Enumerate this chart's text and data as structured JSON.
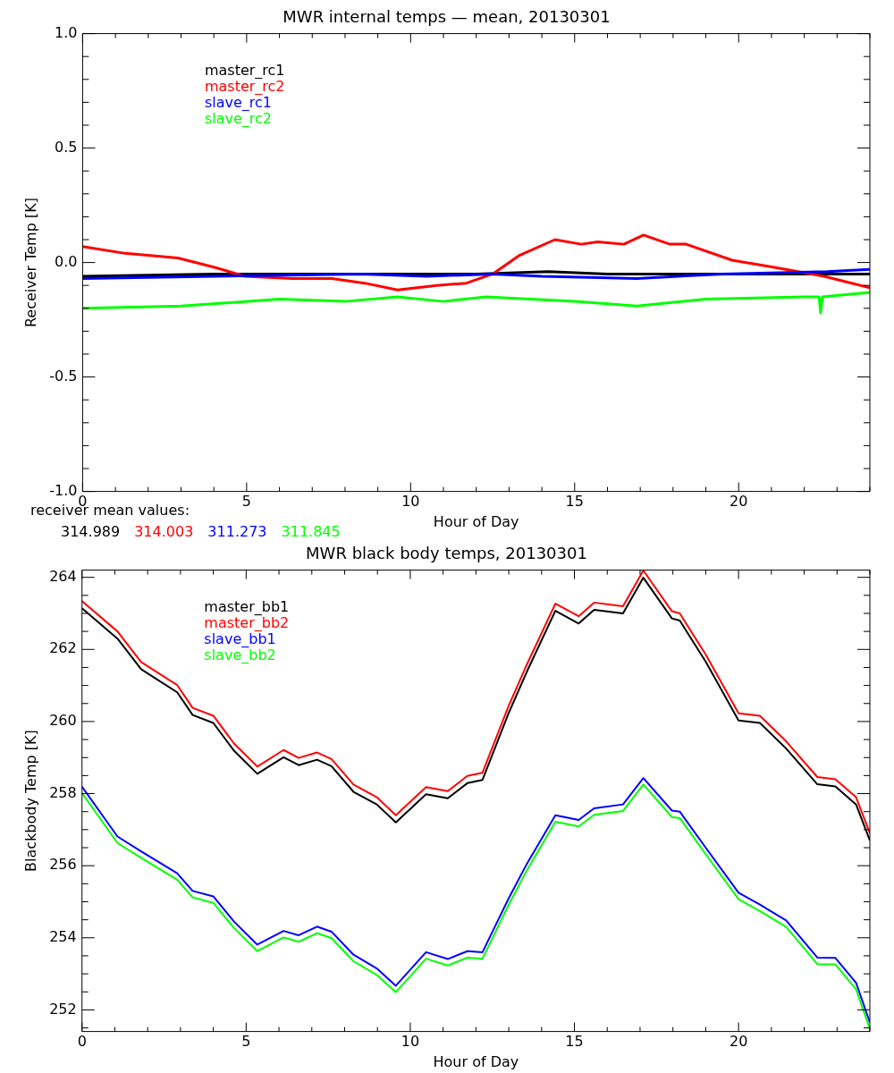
{
  "chart_data": [
    {
      "type": "line",
      "title": "MWR internal temps — mean, 20130301",
      "xlabel": "Hour of Day",
      "ylabel": "Receiver Temp [K]",
      "legend": "top left",
      "xlim": [
        0,
        24
      ],
      "xticks": [
        0,
        {
          "value": 1,
          "label": null
        },
        {
          "value": 2,
          "label": null
        },
        {
          "value": 3,
          "label": null
        },
        {
          "value": 4,
          "label": null
        },
        5,
        {
          "value": 6,
          "label": null
        },
        {
          "value": 7,
          "label": null
        },
        {
          "value": 8,
          "label": null
        },
        {
          "value": 9,
          "label": null
        },
        10,
        {
          "value": 11,
          "label": null
        },
        {
          "value": 12,
          "label": null
        },
        {
          "value": 13,
          "label": null
        },
        {
          "value": 14,
          "label": null
        },
        15,
        {
          "value": 16,
          "label": null
        },
        {
          "value": 17,
          "label": null
        },
        {
          "value": 18,
          "label": null
        },
        {
          "value": 19,
          "label": null
        },
        20,
        {
          "value": 21,
          "label": null
        },
        {
          "value": 22,
          "label": null
        },
        {
          "value": 23,
          "label": null
        },
        {
          "value": 24,
          "label": null
        }
      ],
      "ylim": [
        -1,
        1
      ],
      "yticks": [
        {
          "value": -1,
          "label": "-1.0"
        },
        {
          "value": -0.9,
          "label": null
        },
        {
          "value": -0.8,
          "label": null
        },
        {
          "value": -0.7,
          "label": null
        },
        {
          "value": -0.6,
          "label": null
        },
        {
          "value": -0.5,
          "label": "-0.5"
        },
        {
          "value": -0.4,
          "label": null
        },
        {
          "value": -0.3,
          "label": null
        },
        {
          "value": -0.2,
          "label": null
        },
        {
          "value": -0.1,
          "label": null
        },
        {
          "value": 0,
          "label": "0.0"
        },
        {
          "value": 0.1,
          "label": null
        },
        {
          "value": 0.2,
          "label": null
        },
        {
          "value": 0.3,
          "label": null
        },
        {
          "value": 0.4,
          "label": null
        },
        {
          "value": 0.5,
          "label": "0.5"
        },
        {
          "value": 0.6,
          "label": null
        },
        {
          "value": 0.7,
          "label": null
        },
        {
          "value": 0.8,
          "label": null
        },
        {
          "value": 0.9,
          "label": null
        },
        {
          "value": 1,
          "label": "1.0"
        }
      ],
      "annotations": [
        "receiver mean values:",
        "314.989",
        "314.003",
        "311.273",
        "311.845"
      ],
      "series": [
        {
          "name": "master_rc1",
          "color": "#000000",
          "x": [
            0,
            4,
            8,
            10,
            12,
            14.2,
            16,
            17,
            20,
            24
          ],
          "values": [
            -0.06,
            -0.05,
            -0.05,
            -0.05,
            -0.05,
            -0.04,
            -0.05,
            -0.05,
            -0.05,
            -0.05
          ]
        },
        {
          "name": "master_rc2",
          "color": "#ff0000",
          "x": [
            0,
            1.3,
            2.9,
            4.0,
            4.95,
            6.4,
            7.6,
            8.6,
            9.6,
            10.8,
            11.7,
            12.5,
            13.3,
            14.4,
            15.2,
            15.7,
            16.5,
            17.1,
            17.9,
            18.4,
            19.8,
            21.05,
            22.6,
            24
          ],
          "values": [
            0.07,
            0.04,
            0.02,
            -0.02,
            -0.06,
            -0.07,
            -0.07,
            -0.09,
            -0.12,
            -0.1,
            -0.09,
            -0.05,
            0.03,
            0.1,
            0.08,
            0.09,
            0.08,
            0.12,
            0.08,
            0.08,
            0.01,
            -0.02,
            -0.06,
            -0.11
          ]
        },
        {
          "name": "slave_rc1",
          "color": "#0000ff",
          "x": [
            0,
            4,
            8.5,
            10.5,
            12.5,
            14,
            16.9,
            19.5,
            22.7,
            24
          ],
          "values": [
            -0.07,
            -0.06,
            -0.05,
            -0.06,
            -0.05,
            -0.06,
            -0.07,
            -0.05,
            -0.04,
            -0.03
          ]
        },
        {
          "name": "slave_rc2",
          "color": "#00ff00",
          "x": [
            0,
            3,
            6,
            8,
            9.6,
            11,
            12.3,
            15,
            16.9,
            19,
            22,
            22.45,
            22.5,
            22.55,
            24
          ],
          "values": [
            -0.2,
            -0.19,
            -0.16,
            -0.17,
            -0.15,
            -0.17,
            -0.15,
            -0.17,
            -0.19,
            -0.16,
            -0.15,
            -0.15,
            -0.22,
            -0.15,
            -0.13
          ]
        }
      ]
    },
    {
      "type": "line",
      "title": "MWR black body temps, 20130301",
      "xlabel": "Hour of Day",
      "ylabel": "Blackbody Temp [K]",
      "legend": "top left",
      "xlim": [
        0,
        24
      ],
      "xticks": [
        0,
        {
          "value": 1,
          "label": null
        },
        {
          "value": 2,
          "label": null
        },
        {
          "value": 3,
          "label": null
        },
        {
          "value": 4,
          "label": null
        },
        5,
        {
          "value": 6,
          "label": null
        },
        {
          "value": 7,
          "label": null
        },
        {
          "value": 8,
          "label": null
        },
        {
          "value": 9,
          "label": null
        },
        10,
        {
          "value": 11,
          "label": null
        },
        {
          "value": 12,
          "label": null
        },
        {
          "value": 13,
          "label": null
        },
        {
          "value": 14,
          "label": null
        },
        15,
        {
          "value": 16,
          "label": null
        },
        {
          "value": 17,
          "label": null
        },
        {
          "value": 18,
          "label": null
        },
        {
          "value": 19,
          "label": null
        },
        20,
        {
          "value": 21,
          "label": null
        },
        {
          "value": 22,
          "label": null
        },
        {
          "value": 23,
          "label": null
        },
        {
          "value": 24,
          "label": null
        }
      ],
      "ylim": [
        251.4,
        264.2
      ],
      "yticks": [
        {
          "value": 251.5,
          "label": null
        },
        252,
        {
          "value": 252.5,
          "label": null
        },
        {
          "value": 253,
          "label": null
        },
        {
          "value": 253.5,
          "label": null
        },
        254,
        {
          "value": 254.5,
          "label": null
        },
        {
          "value": 255,
          "label": null
        },
        {
          "value": 255.5,
          "label": null
        },
        256,
        {
          "value": 256.5,
          "label": null
        },
        {
          "value": 257,
          "label": null
        },
        {
          "value": 257.5,
          "label": null
        },
        258,
        {
          "value": 258.5,
          "label": null
        },
        {
          "value": 259,
          "label": null
        },
        {
          "value": 259.5,
          "label": null
        },
        260,
        {
          "value": 260.5,
          "label": null
        },
        {
          "value": 261,
          "label": null
        },
        {
          "value": 261.5,
          "label": null
        },
        262,
        {
          "value": 262.5,
          "label": null
        },
        {
          "value": 263,
          "label": null
        },
        {
          "value": 263.5,
          "label": null
        },
        264
      ],
      "x": [
        0,
        1.08,
        1.8,
        2.9,
        3.37,
        4.0,
        4.63,
        5.34,
        6.14,
        6.6,
        7.16,
        7.6,
        8.27,
        8.98,
        9.56,
        10.48,
        11.14,
        11.74,
        12.2,
        13.0,
        13.55,
        14.42,
        15.13,
        15.6,
        16.48,
        17.1,
        17.97,
        18.21,
        19.0,
        20.0,
        20.65,
        21.45,
        22.4,
        22.95,
        23.58,
        24
      ],
      "series": [
        {
          "name": "master_bb1",
          "color": "#000000",
          "values": [
            263.14,
            262.3,
            261.45,
            260.81,
            260.18,
            259.96,
            259.19,
            258.55,
            259.01,
            258.79,
            258.94,
            258.76,
            258.05,
            257.7,
            257.2,
            257.98,
            257.87,
            258.29,
            258.38,
            260.24,
            261.38,
            263.07,
            262.72,
            263.1,
            263.0,
            263.99,
            262.86,
            262.8,
            261.66,
            260.03,
            259.96,
            259.25,
            258.26,
            258.2,
            257.7,
            256.7
          ]
        },
        {
          "name": "master_bb2",
          "color": "#ff0000",
          "values": [
            263.34,
            262.5,
            261.65,
            261.01,
            260.38,
            260.16,
            259.39,
            258.75,
            259.21,
            258.99,
            259.14,
            258.96,
            258.25,
            257.9,
            257.4,
            258.18,
            258.07,
            258.49,
            258.58,
            260.44,
            261.58,
            263.27,
            262.92,
            263.3,
            263.2,
            264.19,
            263.06,
            263.0,
            261.86,
            260.23,
            260.16,
            259.45,
            258.46,
            258.4,
            257.9,
            256.9
          ]
        },
        {
          "name": "slave_bb1",
          "color": "#0000ff",
          "values": [
            258.19,
            256.81,
            256.4,
            255.79,
            255.3,
            255.15,
            254.45,
            253.81,
            254.19,
            254.07,
            254.31,
            254.17,
            253.53,
            253.15,
            252.67,
            253.6,
            253.41,
            253.63,
            253.6,
            255.1,
            256.05,
            257.4,
            257.27,
            257.59,
            257.7,
            258.43,
            257.53,
            257.5,
            256.5,
            255.25,
            254.92,
            254.48,
            253.45,
            253.44,
            252.75,
            251.65
          ]
        },
        {
          "name": "slave_bb2",
          "color": "#00ff00",
          "values": [
            258.01,
            256.63,
            256.22,
            255.61,
            255.12,
            254.97,
            254.27,
            253.63,
            254.01,
            253.89,
            254.13,
            253.99,
            253.35,
            252.97,
            252.49,
            253.42,
            253.23,
            253.45,
            253.42,
            254.92,
            255.87,
            257.22,
            257.09,
            257.41,
            257.52,
            258.25,
            257.35,
            257.32,
            256.32,
            255.07,
            254.74,
            254.3,
            253.27,
            253.26,
            252.57,
            251.47
          ]
        }
      ]
    }
  ]
}
